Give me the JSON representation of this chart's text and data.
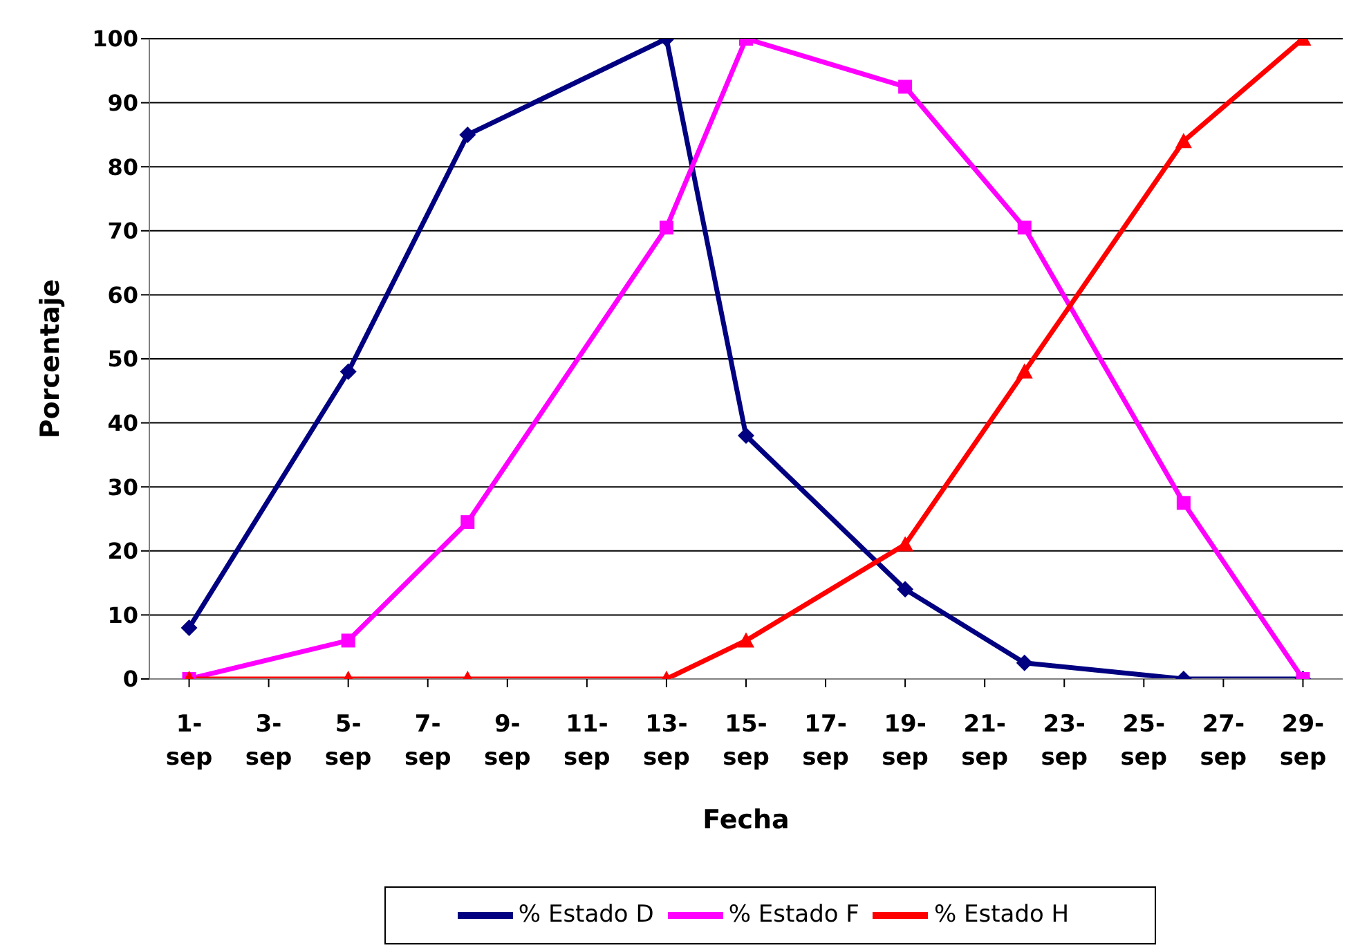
{
  "chart_data": {
    "type": "line",
    "xlabel": "Fecha",
    "ylabel": "Porcentaje",
    "x": [
      "--09-01",
      "--09-05",
      "--09-08",
      "--09-13",
      "--09-15",
      "--09-19",
      "--09-22",
      "--09-26",
      "--09-29"
    ],
    "series": [
      {
        "name": "% Estado D",
        "color": "#000080",
        "marker": "diamond",
        "values": [
          8,
          48,
          85,
          100,
          38,
          14,
          2.5,
          0,
          0
        ]
      },
      {
        "name": "% Estado F",
        "color": "#ff00ff",
        "marker": "square",
        "values": [
          0,
          6,
          24.5,
          70.5,
          100,
          92.5,
          70.5,
          27.5,
          0
        ]
      },
      {
        "name": "% Estado H",
        "color": "#ff0000",
        "marker": "triangle",
        "values": [
          0,
          0,
          0,
          0,
          6,
          21,
          48,
          84,
          100
        ]
      }
    ],
    "xlim": [
      "--08-31",
      "--09-30"
    ],
    "xticks": [
      {
        "value": "--09-01",
        "label": "1-sep"
      },
      {
        "value": "--09-03",
        "label": "3-sep"
      },
      {
        "value": "--09-05",
        "label": "5-sep"
      },
      {
        "value": "--09-07",
        "label": "7-sep"
      },
      {
        "value": "--09-09",
        "label": "9-sep"
      },
      {
        "value": "--09-11",
        "label": "11-sep"
      },
      {
        "value": "--09-13",
        "label": "13-sep"
      },
      {
        "value": "--09-15",
        "label": "15-sep"
      },
      {
        "value": "--09-17",
        "label": "17-sep"
      },
      {
        "value": "--09-19",
        "label": "19-sep"
      },
      {
        "value": "--09-21",
        "label": "21-sep"
      },
      {
        "value": "--09-23",
        "label": "23-sep"
      },
      {
        "value": "--09-25",
        "label": "25-sep"
      },
      {
        "value": "--09-27",
        "label": "27-sep"
      },
      {
        "value": "--09-29",
        "label": "29-sep"
      }
    ],
    "ylim": [
      0,
      100
    ],
    "yticks": [
      0,
      10,
      20,
      30,
      40,
      50,
      60,
      70,
      80,
      90,
      100
    ],
    "grid": "y",
    "legend": "bottom",
    "line_style": "solid"
  }
}
